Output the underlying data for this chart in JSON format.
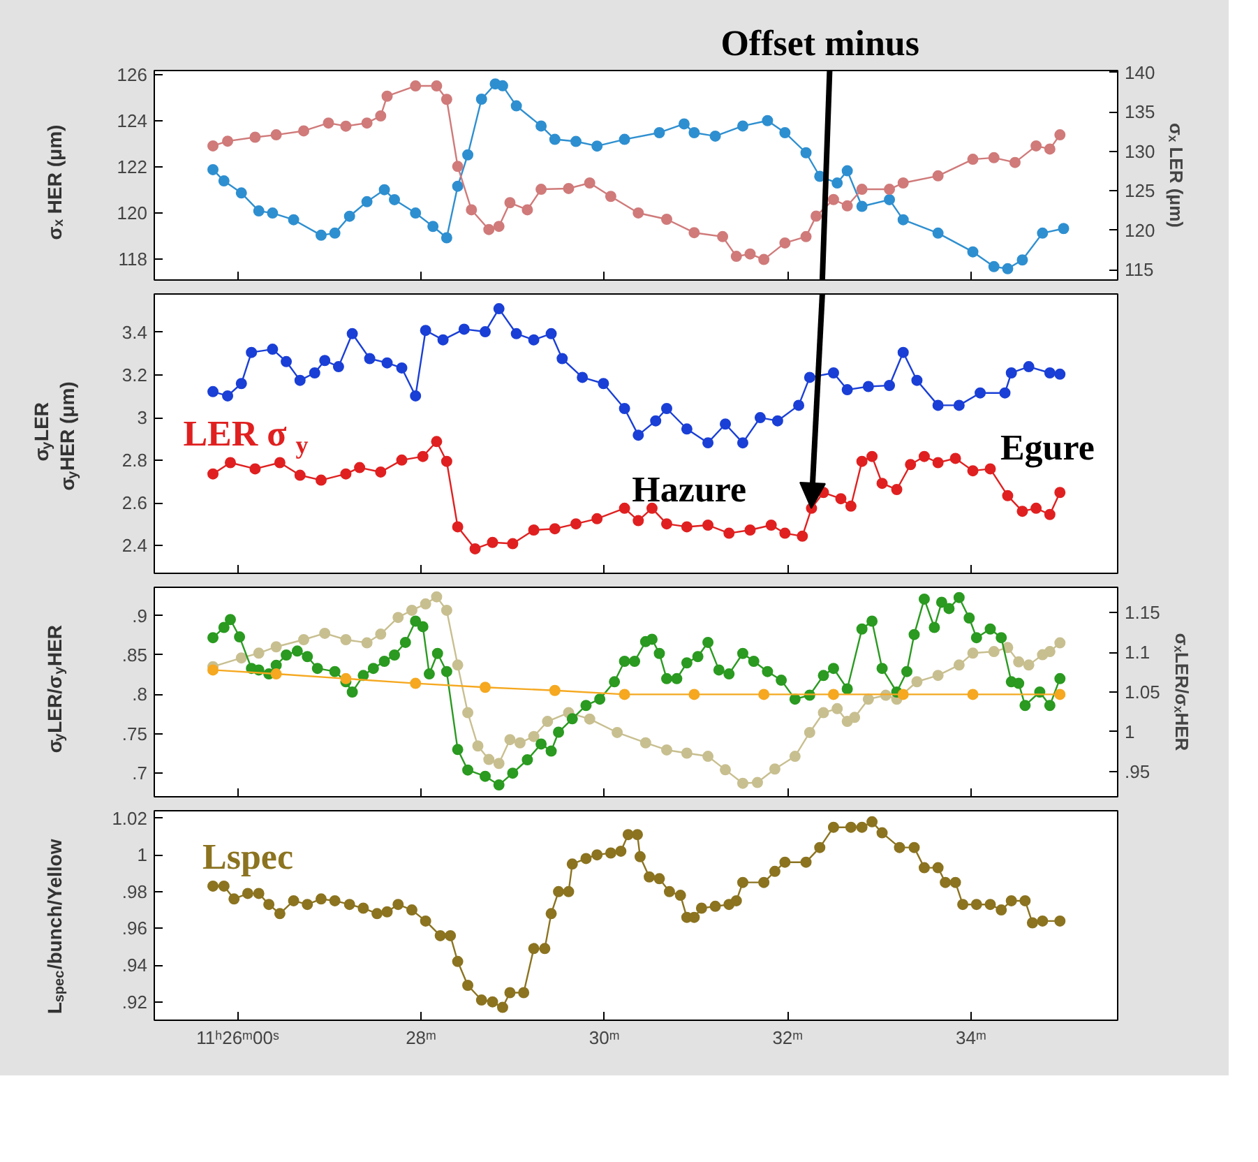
{
  "chart_data": [
    {
      "type": "line",
      "marker": "circle",
      "line_style": "solid",
      "grid": false,
      "tick_labels": "y",
      "xlim": [
        25.09,
        35.6
      ],
      "xticks": [
        {
          "value": 26,
          "label": null
        },
        {
          "value": 28,
          "label": null
        },
        {
          "value": 30,
          "label": null
        },
        {
          "value": 32,
          "label": null
        },
        {
          "value": 34,
          "label": null
        }
      ],
      "ylim": [
        117.1,
        126.17
      ],
      "yticks": [
        118,
        120,
        122,
        124,
        126
      ],
      "y2lim": [
        113.7,
        140.25
      ],
      "y2ticks": [
        115,
        120,
        125,
        130,
        135,
        140
      ],
      "ylabel": "σₓ HER (μm)",
      "y2label": "σₓ LER (μm)",
      "series": [
        {
          "color": "#2e8fd0",
          "x": [
            25.73,
            25.85,
            26.04,
            26.23,
            26.38,
            26.61,
            26.91,
            27.06,
            27.22,
            27.41,
            27.6,
            27.71,
            27.94,
            28.13,
            28.28,
            28.4,
            28.51,
            28.66,
            28.81,
            28.89,
            29.04,
            29.31,
            29.46,
            29.69,
            29.92,
            30.22,
            30.6,
            30.87,
            30.98,
            31.21,
            31.51,
            31.78,
            31.97,
            32.2,
            32.35,
            32.54,
            32.65,
            32.81,
            33.11,
            33.26,
            33.64,
            34.02,
            34.25,
            34.4,
            34.56,
            34.78,
            35.01
          ],
          "values": [
            121.88,
            121.39,
            120.87,
            120.09,
            120.0,
            119.71,
            119.04,
            119.13,
            119.86,
            120.49,
            121.01,
            120.58,
            120.0,
            119.42,
            118.93,
            121.16,
            122.52,
            124.93,
            125.59,
            125.51,
            124.64,
            123.77,
            123.19,
            123.1,
            122.9,
            123.19,
            123.48,
            123.86,
            123.48,
            123.33,
            123.77,
            124.0,
            123.48,
            122.61,
            121.59,
            121.3,
            121.83,
            120.29,
            120.58,
            119.71,
            119.13,
            118.32,
            117.68,
            117.59,
            117.97,
            119.13,
            119.33
          ]
        },
        {
          "color": "#d07a7a",
          "axis": "y2",
          "x": [
            25.73,
            25.89,
            26.19,
            26.42,
            26.72,
            26.99,
            27.18,
            27.41,
            27.56,
            27.63,
            27.94,
            28.17,
            28.28,
            28.4,
            28.55,
            28.74,
            28.85,
            28.97,
            29.16,
            29.31,
            29.61,
            29.84,
            30.07,
            30.37,
            30.68,
            30.98,
            31.29,
            31.44,
            31.59,
            31.74,
            31.97,
            32.2,
            32.31,
            32.5,
            32.65,
            32.81,
            33.11,
            33.26,
            33.64,
            34.02,
            34.25,
            34.48,
            34.71,
            34.86,
            34.97
          ],
          "values": [
            130.7,
            131.3,
            131.8,
            132.1,
            132.6,
            133.6,
            133.2,
            133.6,
            134.5,
            137.0,
            138.3,
            138.3,
            136.6,
            128.1,
            122.6,
            120.1,
            120.5,
            123.5,
            122.6,
            125.2,
            125.3,
            126.0,
            124.3,
            122.2,
            121.4,
            119.7,
            119.2,
            116.7,
            117.0,
            116.3,
            118.4,
            119.2,
            121.8,
            123.9,
            123.1,
            125.2,
            125.2,
            126.0,
            126.9,
            129.0,
            129.2,
            128.6,
            130.7,
            130.3,
            132.1
          ]
        }
      ]
    },
    {
      "type": "line",
      "marker": "circle",
      "line_style": "solid",
      "grid": false,
      "tick_labels": "y",
      "xlim": [
        25.09,
        35.6
      ],
      "xticks": [
        {
          "value": 26,
          "label": null
        },
        {
          "value": 28,
          "label": null
        },
        {
          "value": 30,
          "label": null
        },
        {
          "value": 32,
          "label": null
        },
        {
          "value": 34,
          "label": null
        }
      ],
      "ylim": [
        2.27,
        3.58
      ],
      "yticks": [
        2.4,
        2.6,
        2.8,
        3,
        3.2,
        3.4
      ],
      "ylabel": "σ$_{y}$LER\nσ$_{y}$HER (μm)",
      "annotations": [
        "LER σ$_{y}$",
        "Offset minus",
        "Hazure",
        "Egure"
      ],
      "series": [
        {
          "color": "#1a3fd6",
          "x": [
            25.73,
            25.89,
            26.04,
            26.15,
            26.38,
            26.53,
            26.68,
            26.84,
            26.95,
            27.1,
            27.25,
            27.44,
            27.63,
            27.79,
            27.94,
            28.05,
            28.24,
            28.47,
            28.7,
            28.85,
            29.04,
            29.23,
            29.42,
            29.54,
            29.76,
            29.99,
            30.22,
            30.37,
            30.56,
            30.68,
            30.9,
            31.13,
            31.32,
            31.51,
            31.7,
            31.89,
            32.12,
            32.24,
            32.5,
            32.65,
            32.88,
            33.11,
            33.26,
            33.41,
            33.64,
            33.87,
            34.1,
            34.37,
            34.44,
            34.63,
            34.86,
            34.97
          ],
          "values": [
            3.122,
            3.102,
            3.16,
            3.306,
            3.321,
            3.263,
            3.175,
            3.21,
            3.268,
            3.239,
            3.394,
            3.277,
            3.257,
            3.233,
            3.102,
            3.409,
            3.365,
            3.415,
            3.403,
            3.511,
            3.394,
            3.365,
            3.394,
            3.277,
            3.189,
            3.16,
            3.043,
            2.918,
            2.985,
            3.043,
            2.947,
            2.882,
            2.97,
            2.882,
            3.0,
            2.985,
            3.058,
            3.189,
            3.21,
            3.131,
            3.146,
            3.151,
            3.306,
            3.175,
            3.058,
            3.058,
            3.116,
            3.116,
            3.21,
            3.239,
            3.21,
            3.204
          ]
        },
        {
          "color": "#e02020",
          "x": [
            25.73,
            25.92,
            26.19,
            26.46,
            26.68,
            26.91,
            27.18,
            27.33,
            27.56,
            27.79,
            28.02,
            28.17,
            28.28,
            28.4,
            28.59,
            28.78,
            29.0,
            29.23,
            29.46,
            29.69,
            29.92,
            30.22,
            30.37,
            30.52,
            30.68,
            30.9,
            31.13,
            31.36,
            31.59,
            31.82,
            31.97,
            32.16,
            32.26,
            32.39,
            32.58,
            32.69,
            32.81,
            32.92,
            33.03,
            33.19,
            33.34,
            33.49,
            33.64,
            33.83,
            34.02,
            34.21,
            34.4,
            34.56,
            34.71,
            34.86,
            34.97
          ],
          "values": [
            2.736,
            2.789,
            2.76,
            2.789,
            2.73,
            2.707,
            2.736,
            2.766,
            2.745,
            2.801,
            2.818,
            2.888,
            2.795,
            2.488,
            2.385,
            2.415,
            2.409,
            2.473,
            2.479,
            2.502,
            2.526,
            2.575,
            2.517,
            2.575,
            2.502,
            2.488,
            2.496,
            2.458,
            2.473,
            2.496,
            2.458,
            2.444,
            2.575,
            2.649,
            2.62,
            2.585,
            2.795,
            2.818,
            2.692,
            2.663,
            2.78,
            2.818,
            2.789,
            2.809,
            2.751,
            2.76,
            2.634,
            2.561,
            2.575,
            2.546,
            2.649
          ]
        }
      ]
    },
    {
      "type": "line",
      "marker": "circle",
      "line_style": "solid",
      "grid": false,
      "tick_labels": "y",
      "xlim": [
        25.09,
        35.6
      ],
      "xticks": [
        {
          "value": 26,
          "label": null
        },
        {
          "value": 28,
          "label": null
        },
        {
          "value": 30,
          "label": null
        },
        {
          "value": 32,
          "label": null
        },
        {
          "value": 34,
          "label": null
        }
      ],
      "ylim": [
        0.67,
        0.936
      ],
      "yticks": [
        {
          "value": 0.7,
          "label": ".7"
        },
        {
          "value": 0.75,
          "label": ".75"
        },
        {
          "value": 0.8,
          "label": ".8"
        },
        {
          "value": 0.85,
          "label": ".85"
        },
        {
          "value": 0.9,
          "label": ".9"
        }
      ],
      "y2lim": [
        0.918,
        1.182
      ],
      "y2ticks": [
        {
          "value": 0.95,
          "label": ".95"
        },
        1,
        1.05,
        1.1,
        1.15
      ],
      "ylabel": "σ$_{y}$LER/σ$_{y}$HER",
      "y2label": "σₓLER/σₓHER",
      "series": [
        {
          "color": "#c8bf90",
          "axis": "y2",
          "x": [
            25.73,
            26.04,
            26.23,
            26.42,
            26.72,
            26.95,
            27.18,
            27.41,
            27.56,
            27.75,
            27.9,
            28.05,
            28.17,
            28.28,
            28.4,
            28.51,
            28.62,
            28.74,
            28.85,
            28.97,
            29.08,
            29.23,
            29.38,
            29.61,
            29.84,
            30.14,
            30.45,
            30.68,
            30.9,
            31.13,
            31.32,
            31.51,
            31.67,
            31.86,
            32.08,
            32.24,
            32.39,
            32.54,
            32.65,
            32.73,
            32.88,
            33.07,
            33.19,
            33.41,
            33.64,
            33.87,
            34.02,
            34.25,
            34.4,
            34.52,
            34.63,
            34.78,
            34.86,
            34.97
          ],
          "values": [
            1.082,
            1.093,
            1.099,
            1.107,
            1.116,
            1.124,
            1.116,
            1.112,
            1.123,
            1.144,
            1.153,
            1.161,
            1.17,
            1.153,
            1.084,
            1.024,
            0.982,
            0.965,
            0.96,
            0.99,
            0.986,
            0.994,
            1.013,
            1.024,
            1.016,
            0.999,
            0.986,
            0.977,
            0.973,
            0.969,
            0.952,
            0.935,
            0.936,
            0.953,
            0.969,
            0.999,
            1.024,
            1.029,
            1.013,
            1.018,
            1.041,
            1.046,
            1.041,
            1.063,
            1.071,
            1.084,
            1.099,
            1.101,
            1.106,
            1.088,
            1.084,
            1.097,
            1.101,
            1.112
          ]
        },
        {
          "color": "#2a9a20",
          "x": [
            25.73,
            25.85,
            25.92,
            26.02,
            26.15,
            26.23,
            26.34,
            26.42,
            26.53,
            26.65,
            26.76,
            26.87,
            27.06,
            27.18,
            27.25,
            27.37,
            27.48,
            27.6,
            27.71,
            27.83,
            27.94,
            28.02,
            28.09,
            28.18,
            28.28,
            28.4,
            28.51,
            28.7,
            28.85,
            29.0,
            29.16,
            29.31,
            29.42,
            29.5,
            29.65,
            29.8,
            29.95,
            30.11,
            30.22,
            30.33,
            30.45,
            30.52,
            30.6,
            30.68,
            30.79,
            30.9,
            31.02,
            31.13,
            31.25,
            31.36,
            31.51,
            31.63,
            31.78,
            31.93,
            32.08,
            32.24,
            32.39,
            32.5,
            32.65,
            32.81,
            32.92,
            33.03,
            33.19,
            33.3,
            33.38,
            33.49,
            33.6,
            33.68,
            33.76,
            33.87,
            33.98,
            34.06,
            34.21,
            34.33,
            34.44,
            34.52,
            34.59,
            34.75,
            34.86,
            34.97
          ],
          "values": [
            0.872,
            0.885,
            0.895,
            0.873,
            0.833,
            0.831,
            0.826,
            0.837,
            0.85,
            0.855,
            0.848,
            0.833,
            0.829,
            0.816,
            0.803,
            0.824,
            0.833,
            0.842,
            0.85,
            0.866,
            0.893,
            0.886,
            0.826,
            0.852,
            0.829,
            0.73,
            0.704,
            0.696,
            0.685,
            0.7,
            0.717,
            0.737,
            0.728,
            0.752,
            0.769,
            0.786,
            0.794,
            0.816,
            0.842,
            0.842,
            0.867,
            0.87,
            0.852,
            0.82,
            0.82,
            0.84,
            0.848,
            0.866,
            0.831,
            0.826,
            0.852,
            0.842,
            0.829,
            0.818,
            0.794,
            0.799,
            0.824,
            0.833,
            0.807,
            0.883,
            0.893,
            0.833,
            0.803,
            0.829,
            0.876,
            0.921,
            0.885,
            0.917,
            0.909,
            0.923,
            0.897,
            0.872,
            0.883,
            0.872,
            0.816,
            0.814,
            0.786,
            0.803,
            0.786,
            0.82
          ]
        },
        {
          "color": "#f5a820",
          "x": [
            25.73,
            26.42,
            27.18,
            27.94,
            28.7,
            29.46,
            30.22,
            30.98,
            31.74,
            32.5,
            33.26,
            34.02,
            34.97
          ],
          "values": [
            0.831,
            0.826,
            0.82,
            0.814,
            0.809,
            0.805,
            0.8,
            0.8,
            0.8,
            0.8,
            0.8,
            0.8,
            0.8
          ]
        }
      ]
    },
    {
      "type": "line",
      "marker": "circle",
      "line_style": "solid",
      "grid": false,
      "xlim": [
        25.09,
        35.6
      ],
      "xticks": [
        {
          "value": 26,
          "label": "11ʰ26ᵐ00ˢ"
        },
        {
          "value": 28,
          "label": "28ᵐ"
        },
        {
          "value": 30,
          "label": "30ᵐ"
        },
        {
          "value": 32,
          "label": "32ᵐ"
        },
        {
          "value": 34,
          "label": "34ᵐ"
        }
      ],
      "ylim": [
        0.91,
        1.024
      ],
      "yticks": [
        {
          "value": 0.92,
          "label": ".92"
        },
        {
          "value": 0.94,
          "label": ".94"
        },
        {
          "value": 0.96,
          "label": ".96"
        },
        {
          "value": 0.98,
          "label": ".98"
        },
        1,
        {
          "value": 1.02,
          "label": "1.02"
        }
      ],
      "ylabel": "L$_{spec}$/bunch/Yellow",
      "annotations": [
        "Lspec"
      ],
      "series": [
        {
          "color": "#8b7320",
          "x": [
            25.73,
            25.85,
            25.96,
            26.11,
            26.23,
            26.34,
            26.46,
            26.61,
            26.76,
            26.91,
            27.06,
            27.22,
            27.37,
            27.52,
            27.63,
            27.75,
            27.9,
            28.05,
            28.21,
            28.32,
            28.4,
            28.51,
            28.66,
            28.78,
            28.89,
            28.97,
            29.12,
            29.23,
            29.35,
            29.42,
            29.5,
            29.61,
            29.65,
            29.8,
            29.92,
            30.07,
            30.18,
            30.26,
            30.36,
            30.39,
            30.49,
            30.6,
            30.71,
            30.83,
            30.9,
            30.98,
            31.06,
            31.21,
            31.36,
            31.44,
            31.51,
            31.74,
            31.86,
            31.97,
            32.2,
            32.35,
            32.5,
            32.69,
            32.81,
            32.92,
            33.03,
            33.22,
            33.38,
            33.49,
            33.64,
            33.72,
            33.83,
            33.91,
            34.06,
            34.21,
            34.33,
            34.44,
            34.59,
            34.67,
            34.78,
            34.97
          ],
          "values": [
            0.983,
            0.983,
            0.976,
            0.979,
            0.979,
            0.973,
            0.968,
            0.975,
            0.973,
            0.976,
            0.975,
            0.973,
            0.971,
            0.968,
            0.969,
            0.973,
            0.97,
            0.964,
            0.956,
            0.956,
            0.942,
            0.929,
            0.921,
            0.92,
            0.917,
            0.925,
            0.925,
            0.949,
            0.949,
            0.968,
            0.98,
            0.98,
            0.995,
            0.998,
            1.0,
            1.001,
            1.002,
            1.011,
            1.011,
            0.999,
            0.988,
            0.987,
            0.98,
            0.978,
            0.966,
            0.966,
            0.971,
            0.972,
            0.973,
            0.975,
            0.985,
            0.985,
            0.991,
            0.996,
            0.996,
            1.004,
            1.015,
            1.015,
            1.015,
            1.018,
            1.012,
            1.004,
            1.004,
            0.993,
            0.993,
            0.985,
            0.985,
            0.973,
            0.973,
            0.973,
            0.97,
            0.975,
            0.975,
            0.963,
            0.964,
            0.964
          ]
        }
      ]
    }
  ]
}
